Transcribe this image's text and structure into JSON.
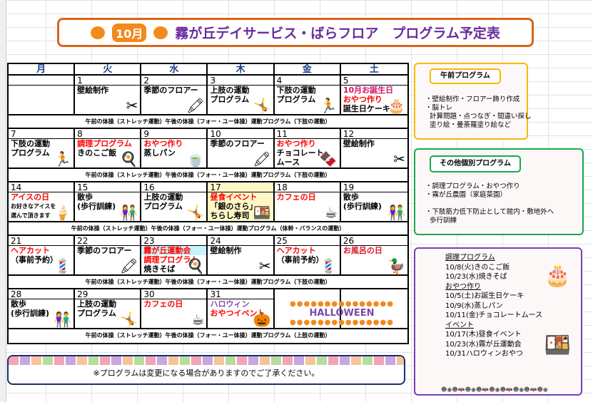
{
  "title": {
    "month": "10月",
    "text": "霧が丘デイサービス・ばらフロア　プログラム予定表"
  },
  "weekdays": [
    "月",
    "火",
    "水",
    "木",
    "金",
    "土"
  ],
  "weeks": [
    {
      "days": [
        {
          "date": "",
          "lines": []
        },
        {
          "date": "1",
          "lines": [
            {
              "text": "壁絵制作",
              "color": "#000"
            }
          ],
          "icon": "scissors-icon"
        },
        {
          "date": "2",
          "lines": [
            {
              "text": "季節のフロアー",
              "color": "#000"
            }
          ],
          "icon": "crayon-icon"
        },
        {
          "date": "3",
          "lines": [
            {
              "text": "上肢の運動",
              "color": "#000"
            },
            {
              "text": "プログラム",
              "color": "#000"
            }
          ],
          "icon": "stretching-woman-icon"
        },
        {
          "date": "4",
          "lines": [
            {
              "text": "下肢の運動",
              "color": "#000"
            },
            {
              "text": "プログラム",
              "color": "#000"
            }
          ],
          "icon": "exercising-man-icon"
        },
        {
          "date": "5",
          "lines": [
            {
              "text": "10月お誕生日",
              "color": "#d0156a"
            },
            {
              "text": "おやつ作り",
              "color": "#ff0000"
            },
            {
              "text": "誕生日ケーキ",
              "color": "#000"
            }
          ],
          "icon": "birthday-cake-icon"
        }
      ],
      "exercise": "午前の体操（ストレッチ運動）午後の体操（フォー・ユー体操）運動プログラム（下肢の運動）"
    },
    {
      "days": [
        {
          "date": "7",
          "lines": [
            {
              "text": "下肢の運動",
              "color": "#000"
            },
            {
              "text": "プログラム",
              "color": "#000"
            }
          ],
          "icon": "exercising-man-icon"
        },
        {
          "date": "8",
          "lines": [
            {
              "text": "調理プログラム",
              "color": "#ff0000"
            },
            {
              "text": "きのこご飯",
              "color": "#000"
            }
          ],
          "icon": "frying-pan-icon"
        },
        {
          "date": "9",
          "lines": [
            {
              "text": "おやつ作り",
              "color": "#ff0000"
            },
            {
              "text": "蒸しパン",
              "color": "#000"
            }
          ],
          "icon": "steamed-bun-icon"
        },
        {
          "date": "10",
          "lines": [
            {
              "text": "季節のフロアー",
              "color": "#000"
            }
          ],
          "icon": "crayon-icon"
        },
        {
          "date": "11",
          "lines": [
            {
              "text": "おやつ作り",
              "color": "#ff0000"
            },
            {
              "text": "チョコレート",
              "color": "#000"
            },
            {
              "text": "ムース",
              "color": "#000"
            }
          ],
          "icon": "chocolate-icon"
        },
        {
          "date": "12",
          "lines": [
            {
              "text": "壁絵制作",
              "color": "#000"
            }
          ],
          "icon": "scissors-icon"
        }
      ],
      "exercise": "午前の体操（ストレッチ運動）午後の体操（フォー・ユー体操）運動プログラム（下肢の運動）"
    },
    {
      "days": [
        {
          "date": "14",
          "lines": [
            {
              "text": "アイスの日",
              "color": "#ff0000"
            },
            {
              "text": "お好きなアイスを",
              "color": "#000",
              "small": true
            },
            {
              "text": "選んで頂きます",
              "color": "#000",
              "small": true
            }
          ],
          "icon": "ice-cream-icon"
        },
        {
          "date": "15",
          "lines": [
            {
              "text": "散歩",
              "color": "#000"
            },
            {
              "text": "(歩行訓練)",
              "color": "#000"
            }
          ],
          "icon": "walking-couple-icon"
        },
        {
          "date": "16",
          "lines": [
            {
              "text": "上肢の運動",
              "color": "#000"
            },
            {
              "text": "プログラム",
              "color": "#000"
            }
          ],
          "icon": "stretching-woman-icon"
        },
        {
          "date": "17",
          "lines": [
            {
              "text": "昼食イベント",
              "color": "#ff0000"
            },
            {
              "text": "「銀のさら」",
              "color": "#000"
            },
            {
              "text": "ちらし寿司",
              "color": "#000"
            }
          ],
          "icon": "sushi-icon",
          "bg": "#fff8c6"
        },
        {
          "date": "18",
          "lines": [
            {
              "text": "カフェの日",
              "color": "#ff0000"
            }
          ],
          "icon": "coffee-cup-icon"
        },
        {
          "date": "19",
          "lines": [
            {
              "text": "散歩",
              "color": "#000"
            },
            {
              "text": "(歩行訓練)",
              "color": "#000"
            }
          ],
          "icon": "walking-couple-icon"
        }
      ],
      "exercise": "午前の体操（ストレッチ運動）午後の体操（フォー・ユー体操）運動プログラム（体幹・バランスの運動）"
    },
    {
      "days": [
        {
          "date": "21",
          "lines": [
            {
              "text": "ヘアカット",
              "color": "#ff0000"
            },
            {
              "text": "（事前予約）",
              "color": "#000"
            }
          ],
          "icon": "barber-shop-icon"
        },
        {
          "date": "22",
          "lines": [
            {
              "text": "季節のフロアー",
              "color": "#000"
            }
          ],
          "icon": "crayon-icon"
        },
        {
          "date": "23",
          "lines": [
            {
              "text": "霧が丘運動会",
              "color": "#ff0000",
              "bg": "#c9f3fb"
            },
            {
              "text": "調理プログラム",
              "color": "#ff0000"
            },
            {
              "text": "焼きそば",
              "color": "#000"
            }
          ],
          "icon": "frying-pan-icon"
        },
        {
          "date": "24",
          "lines": [
            {
              "text": "壁絵制作",
              "color": "#000"
            }
          ],
          "icon": "scissors-icon"
        },
        {
          "date": "25",
          "lines": [
            {
              "text": "ヘアカット",
              "color": "#ff0000"
            },
            {
              "text": "（事前予約）",
              "color": "#000"
            }
          ],
          "icon": "barber-shop-icon"
        },
        {
          "date": "26",
          "lines": [
            {
              "text": "お風呂の日",
              "color": "#e0152a"
            }
          ],
          "icon": "rubber-duck-icon"
        }
      ],
      "exercise": "午前の体操（ストレッチ運動）午後の体操（フォー・ユー体操）運動プログラム（下肢の運動）"
    },
    {
      "days": [
        {
          "date": "28",
          "lines": [
            {
              "text": "散歩",
              "color": "#000"
            },
            {
              "text": "(歩行訓練)",
              "color": "#000"
            }
          ],
          "icon": "walking-couple-icon"
        },
        {
          "date": "29",
          "lines": [
            {
              "text": "上肢の運動",
              "color": "#000"
            },
            {
              "text": "プログラム",
              "color": "#000"
            }
          ],
          "icon": "stretching-woman-icon"
        },
        {
          "date": "30",
          "lines": [
            {
              "text": "カフェの日",
              "color": "#ff0000"
            }
          ],
          "icon": "coffee-cup-icon"
        },
        {
          "date": "31",
          "lines": [
            {
              "text": "ハロウィン",
              "color": "#8a4ab0"
            },
            {
              "text": "おやつイベント",
              "color": "#ff0000"
            }
          ],
          "icon": "pumpkin-icon"
        }
      ],
      "exercise": "午前の体操（ストレッチ運動）午後の体操（フォー・ユー体操）運動プログラム（上肢の運動）"
    }
  ],
  "halloween": "HALLOWEEN",
  "notice": "※プログラムは変更になる場合がありますのでご了承ください。",
  "morning": {
    "label": "午前プログラム",
    "body": "・壁絵制作・フロアー飾り作成\n・脳トレ\n  計算問題・点つなぎ・間違い探し\n  塗り絵・曼荼羅塗り絵など"
  },
  "other": {
    "label": "その他個別プログラム",
    "body": "・調理プログラム・おやつ作り\n・霧が丘農園（家庭菜園）\n\n・下肢筋力低下防止として館内・敷地外へ\n  歩行訓練"
  },
  "schedule": [
    {
      "text": "調理プログラム",
      "heading": true
    },
    {
      "text": "10/8(火)きのこご飯"
    },
    {
      "text": "10/23(水)焼きそば"
    },
    {
      "text": "おやつ作り",
      "heading": true
    },
    {
      "text": "10/5(土)お誕生日ケーキ"
    },
    {
      "text": "10/9(水)蒸しパン"
    },
    {
      "text": "10/11(金)チョコレートムース"
    },
    {
      "text": "イベント",
      "heading": true
    },
    {
      "text": "10/17(木)昼食イベント"
    },
    {
      "text": "10/23(水)霧が丘運動会"
    },
    {
      "text": "10/31ハロウィンおやつ"
    }
  ],
  "colors": {
    "title_border": "#d9651a",
    "title_text": "#6a2d9c",
    "morning": "#f9b800",
    "other": "#1aa84a",
    "schedule": "#7a3fb0",
    "weekday": "#1b3f8c"
  }
}
